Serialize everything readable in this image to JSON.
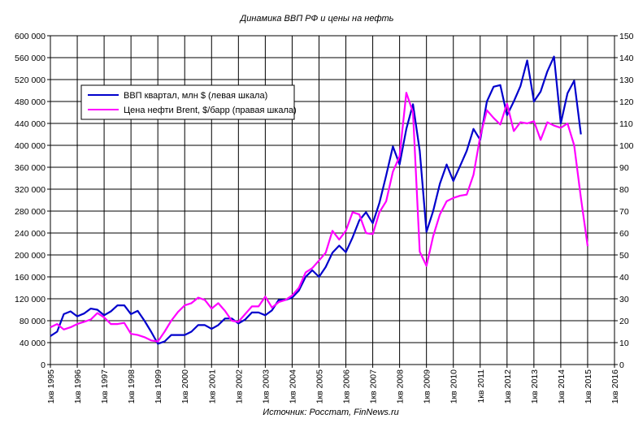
{
  "chart_data": {
    "type": "line",
    "title": "Динамика ВВП РФ и цены на нефть",
    "source": "Источник: Росстат, FinNews.ru",
    "grid": true,
    "legend_position": "top-left",
    "x_tick_labels": [
      "1кв 1995",
      "1кв 1996",
      "1кв 1997",
      "1кв 1998",
      "1кв 1999",
      "1кв 2000",
      "1кв 2001",
      "1кв 2002",
      "1кв 2003",
      "1кв 2004",
      "1кв 2005",
      "1кв 2006",
      "1кв 2007",
      "1кв 2008",
      "1кв 2009",
      "1кв 2010",
      "1кв 2011",
      "1кв 2012",
      "1кв 2013",
      "1кв 2014",
      "1кв 2015",
      "1кв 2016"
    ],
    "y_left": {
      "ylim": [
        0,
        600000
      ],
      "tick_labels": [
        "0",
        "40 000",
        "80 000",
        "120 000",
        "160 000",
        "200 000",
        "240 000",
        "280 000",
        "320 000",
        "360 000",
        "400 000",
        "440 000",
        "480 000",
        "520 000",
        "560 000",
        "600 000"
      ]
    },
    "y_right": {
      "ylim": [
        0,
        150
      ],
      "tick_labels": [
        "0",
        "10",
        "20",
        "30",
        "40",
        "50",
        "60",
        "70",
        "80",
        "90",
        "100",
        "110",
        "120",
        "130",
        "140",
        "150"
      ]
    },
    "series": [
      {
        "name": "ВВП квартал, млн $ (левая шкала)",
        "color": "#0000cc",
        "axis": "left",
        "points": [
          [
            "1995.00",
            52000
          ],
          [
            "1995.25",
            60000
          ],
          [
            "1995.50",
            92000
          ],
          [
            "1995.75",
            97000
          ],
          [
            "1996.00",
            88000
          ],
          [
            "1996.25",
            93000
          ],
          [
            "1996.50",
            102000
          ],
          [
            "1996.75",
            100000
          ],
          [
            "1997.00",
            90000
          ],
          [
            "1997.25",
            97000
          ],
          [
            "1997.50",
            108000
          ],
          [
            "1997.75",
            108000
          ],
          [
            "1998.00",
            92000
          ],
          [
            "1998.25",
            98000
          ],
          [
            "1998.50",
            80000
          ],
          [
            "1998.75",
            60000
          ],
          [
            "1999.00",
            38000
          ],
          [
            "1999.25",
            42000
          ],
          [
            "1999.50",
            54000
          ],
          [
            "1999.75",
            54000
          ],
          [
            "2000.00",
            54000
          ],
          [
            "2000.25",
            60000
          ],
          [
            "2000.50",
            72000
          ],
          [
            "2000.75",
            72000
          ],
          [
            "2001.00",
            65000
          ],
          [
            "2001.25",
            72000
          ],
          [
            "2001.50",
            84000
          ],
          [
            "2001.75",
            84000
          ],
          [
            "2002.00",
            75000
          ],
          [
            "2002.25",
            82000
          ],
          [
            "2002.50",
            95000
          ],
          [
            "2002.75",
            95000
          ],
          [
            "2003.00",
            90000
          ],
          [
            "2003.25",
            99000
          ],
          [
            "2003.50",
            118000
          ],
          [
            "2003.75",
            118000
          ],
          [
            "2004.00",
            122000
          ],
          [
            "2004.25",
            135000
          ],
          [
            "2004.50",
            160000
          ],
          [
            "2004.75",
            172000
          ],
          [
            "2005.00",
            160000
          ],
          [
            "2005.25",
            178000
          ],
          [
            "2005.50",
            204000
          ],
          [
            "2005.75",
            217000
          ],
          [
            "2006.00",
            205000
          ],
          [
            "2006.25",
            232000
          ],
          [
            "2006.50",
            263000
          ],
          [
            "2006.75",
            278000
          ],
          [
            "2007.00",
            258000
          ],
          [
            "2007.25",
            295000
          ],
          [
            "2007.50",
            345000
          ],
          [
            "2007.75",
            398000
          ],
          [
            "2008.00",
            365000
          ],
          [
            "2008.25",
            430000
          ],
          [
            "2008.50",
            475000
          ],
          [
            "2008.75",
            390000
          ],
          [
            "2009.00",
            242000
          ],
          [
            "2009.25",
            280000
          ],
          [
            "2009.50",
            330000
          ],
          [
            "2009.75",
            365000
          ],
          [
            "2010.00",
            335000
          ],
          [
            "2010.25",
            362000
          ],
          [
            "2010.50",
            390000
          ],
          [
            "2010.75",
            430000
          ],
          [
            "2011.00",
            410000
          ],
          [
            "2011.25",
            480000
          ],
          [
            "2011.50",
            507000
          ],
          [
            "2011.75",
            510000
          ],
          [
            "2012.00",
            455000
          ],
          [
            "2012.25",
            480000
          ],
          [
            "2012.50",
            508000
          ],
          [
            "2012.75",
            555000
          ],
          [
            "2013.00",
            480000
          ],
          [
            "2013.25",
            498000
          ],
          [
            "2013.50",
            535000
          ],
          [
            "2013.75",
            562000
          ],
          [
            "2014.00",
            440000
          ],
          [
            "2014.25",
            495000
          ],
          [
            "2014.50",
            518000
          ],
          [
            "2014.75",
            420000
          ]
        ]
      },
      {
        "name": "Цена нефти Brent, $/барр (правая шкала)",
        "color": "#ff00ff",
        "axis": "right",
        "points": [
          [
            "1995.00",
            17
          ],
          [
            "1995.25",
            18.5
          ],
          [
            "1995.50",
            16
          ],
          [
            "1995.75",
            17
          ],
          [
            "1996.00",
            18.5
          ],
          [
            "1996.25",
            19.5
          ],
          [
            "1996.50",
            20.5
          ],
          [
            "1996.75",
            23.5
          ],
          [
            "1997.00",
            21.5
          ],
          [
            "1997.25",
            18.5
          ],
          [
            "1997.50",
            18.5
          ],
          [
            "1997.75",
            19
          ],
          [
            "1998.00",
            14
          ],
          [
            "1998.25",
            13.5
          ],
          [
            "1998.50",
            12.5
          ],
          [
            "1998.75",
            11
          ],
          [
            "1999.00",
            10.5
          ],
          [
            "1999.25",
            15
          ],
          [
            "1999.50",
            20
          ],
          [
            "1999.75",
            24
          ],
          [
            "2000.00",
            27
          ],
          [
            "2000.25",
            28
          ],
          [
            "2000.50",
            30.5
          ],
          [
            "2000.75",
            29.5
          ],
          [
            "2001.00",
            25.5
          ],
          [
            "2001.25",
            28
          ],
          [
            "2001.50",
            24.5
          ],
          [
            "2001.75",
            20
          ],
          [
            "2002.00",
            19.5
          ],
          [
            "2002.25",
            23
          ],
          [
            "2002.50",
            26.5
          ],
          [
            "2002.75",
            26.5
          ],
          [
            "2003.00",
            31
          ],
          [
            "2003.25",
            26
          ],
          [
            "2003.50",
            28.5
          ],
          [
            "2003.75",
            29.5
          ],
          [
            "2004.00",
            31.5
          ],
          [
            "2004.25",
            35
          ],
          [
            "2004.50",
            42
          ],
          [
            "2004.75",
            44
          ],
          [
            "2005.00",
            47.5
          ],
          [
            "2005.25",
            51
          ],
          [
            "2005.50",
            61
          ],
          [
            "2005.75",
            57
          ],
          [
            "2006.00",
            61
          ],
          [
            "2006.25",
            69.5
          ],
          [
            "2006.50",
            68.5
          ],
          [
            "2006.75",
            60
          ],
          [
            "2007.00",
            59.5
          ],
          [
            "2007.25",
            69.5
          ],
          [
            "2007.50",
            74.5
          ],
          [
            "2007.75",
            88
          ],
          [
            "2008.00",
            95
          ],
          [
            "2008.25",
            124
          ],
          [
            "2008.50",
            115
          ],
          [
            "2008.75",
            51.5
          ],
          [
            "2009.00",
            45
          ],
          [
            "2009.25",
            58.5
          ],
          [
            "2009.50",
            68.5
          ],
          [
            "2009.75",
            74.5
          ],
          [
            "2010.00",
            76
          ],
          [
            "2010.25",
            77
          ],
          [
            "2010.50",
            77.5
          ],
          [
            "2010.75",
            86.5
          ],
          [
            "2011.00",
            104
          ],
          [
            "2011.25",
            116
          ],
          [
            "2011.50",
            112.5
          ],
          [
            "2011.75",
            109.5
          ],
          [
            "2012.00",
            119
          ],
          [
            "2012.25",
            106.5
          ],
          [
            "2012.50",
            110.5
          ],
          [
            "2012.75",
            110
          ],
          [
            "2013.00",
            111
          ],
          [
            "2013.25",
            102.5
          ],
          [
            "2013.50",
            110.5
          ],
          [
            "2013.75",
            109
          ],
          [
            "2014.00",
            108
          ],
          [
            "2014.25",
            110
          ],
          [
            "2014.50",
            100
          ],
          [
            "2014.75",
            76
          ],
          [
            "2015.00",
            54
          ]
        ]
      }
    ]
  }
}
